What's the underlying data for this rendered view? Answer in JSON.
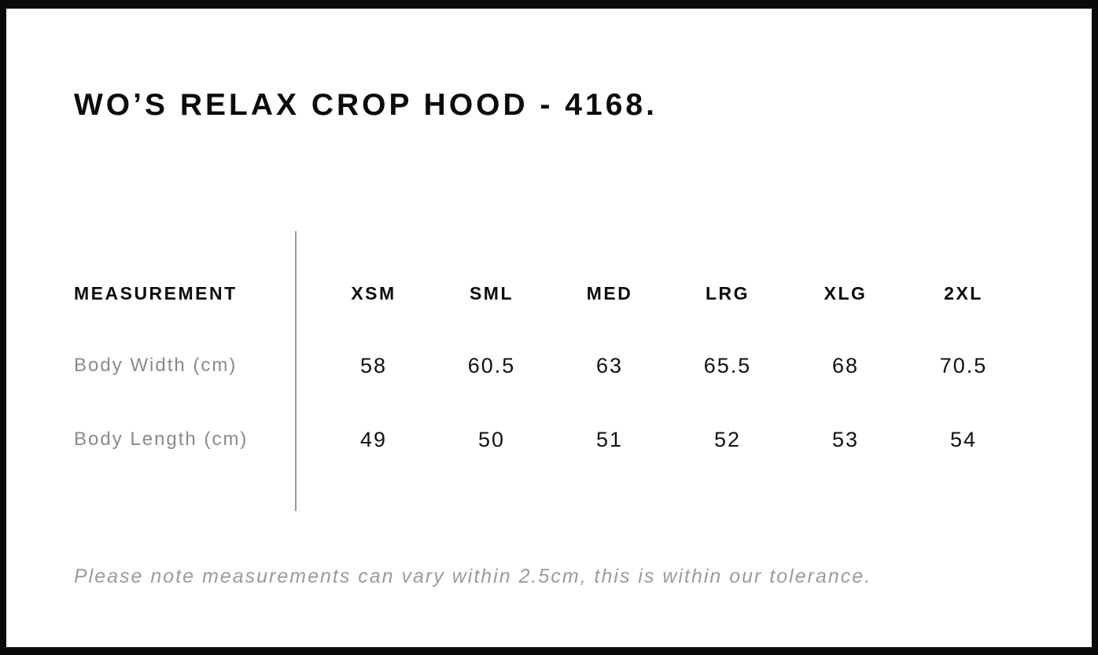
{
  "page": {
    "title": "WO’S RELAX CROP HOOD - 4168.",
    "note": "Please note measurements can vary within 2.5cm, this is within our tolerance."
  },
  "table": {
    "measurement_header": "MEASUREMENT",
    "size_headers": [
      "XSM",
      "SML",
      "MED",
      "LRG",
      "XLG",
      "2XL"
    ],
    "rows": [
      {
        "label": "Body Width (cm)",
        "values": [
          "58",
          "60.5",
          "63",
          "65.5",
          "68",
          "70.5"
        ]
      },
      {
        "label": "Body Length (cm)",
        "values": [
          "49",
          "50",
          "51",
          "52",
          "53",
          "54"
        ]
      }
    ]
  },
  "colors": {
    "page_border": "#0a0a0a",
    "heading_text": "#0c0c0c",
    "label_text": "#8a8a8a",
    "value_text": "#111111",
    "note_text": "#9b9b9b",
    "divider": "#9a9a9a"
  },
  "chart_data": {
    "type": "table",
    "title": "WO’S RELAX CROP HOOD - 4168.",
    "columns": [
      "MEASUREMENT",
      "XSM",
      "SML",
      "MED",
      "LRG",
      "XLG",
      "2XL"
    ],
    "rows": [
      [
        "Body Width (cm)",
        58,
        60.5,
        63,
        65.5,
        68,
        70.5
      ],
      [
        "Body Length (cm)",
        49,
        50,
        51,
        52,
        53,
        54
      ]
    ],
    "footnote": "Please note measurements can vary within 2.5cm, this is within our tolerance."
  }
}
